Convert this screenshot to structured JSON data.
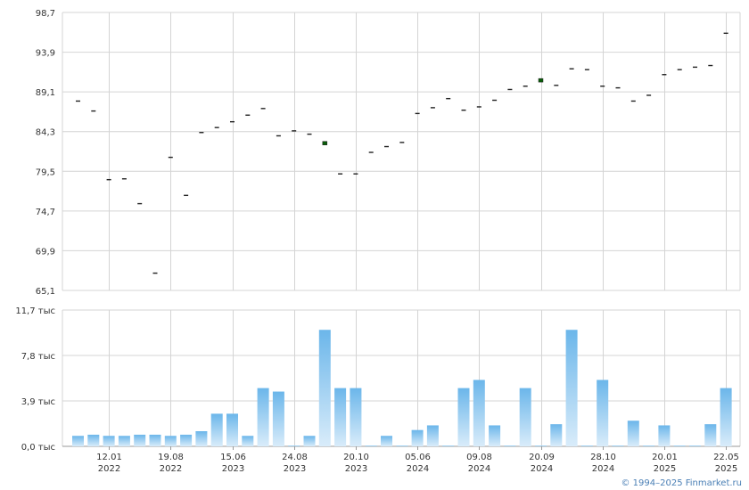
{
  "chart_data": [
    {
      "type": "scatter",
      "marker": "dash",
      "ylim": [
        65.1,
        98.7
      ],
      "y_ticks": [
        "98,7",
        "93,9",
        "89,1",
        "84,3",
        "79,5",
        "74,7",
        "69,9",
        "65,1"
      ],
      "values": [
        88.0,
        86.8,
        78.5,
        78.6,
        75.6,
        67.2,
        81.2,
        76.6,
        84.2,
        84.8,
        85.5,
        86.3,
        87.1,
        83.8,
        84.4,
        84.0,
        82.9,
        79.2,
        79.2,
        81.8,
        82.5,
        83.0,
        86.5,
        87.2,
        88.3,
        86.9,
        87.3,
        88.1,
        89.4,
        89.8,
        90.5,
        89.9,
        91.9,
        91.8,
        89.8,
        89.6,
        88.0,
        88.7,
        91.2,
        91.8,
        92.1,
        92.3,
        96.2
      ],
      "highlighted": [
        16,
        30
      ],
      "colors": {
        "marker": "#222222",
        "highlight": "#0a5c0a"
      }
    },
    {
      "type": "bar",
      "ylim": [
        0,
        11.7
      ],
      "y_ticks": [
        "11,7 тыс",
        "7,8 тыс",
        "3,9 тыс",
        "0,0 тыс"
      ],
      "values": [
        0.9,
        1.0,
        0.9,
        0.9,
        1.0,
        1.0,
        0.9,
        1.0,
        1.3,
        2.8,
        2.8,
        0.9,
        5.0,
        4.7,
        0.05,
        0.9,
        10.0,
        5.0,
        5.0,
        0.05,
        0.9,
        0.05,
        1.4,
        1.8,
        0.05,
        5.0,
        5.7,
        1.8,
        0.05,
        5.0,
        0.05,
        1.9,
        10.0,
        0.05,
        5.7,
        0.05,
        2.2,
        0.05,
        1.8,
        0.05,
        0.05,
        1.9,
        5.0
      ],
      "colors": {
        "bar_top": "#6bb6ea",
        "bar_bottom": "#d9ecfa"
      }
    }
  ],
  "x_axis": {
    "labels": [
      {
        "date": "12.01",
        "year": "2022",
        "index": 2
      },
      {
        "date": "19.08",
        "year": "2022",
        "index": 6
      },
      {
        "date": "15.06",
        "year": "2023",
        "index": 10
      },
      {
        "date": "24.08",
        "year": "2023",
        "index": 14
      },
      {
        "date": "20.10",
        "year": "2023",
        "index": 18
      },
      {
        "date": "05.06",
        "year": "2024",
        "index": 22
      },
      {
        "date": "09.08",
        "year": "2024",
        "index": 26
      },
      {
        "date": "20.09",
        "year": "2024",
        "index": 30
      },
      {
        "date": "28.10",
        "year": "2024",
        "index": 34
      },
      {
        "date": "20.01",
        "year": "2025",
        "index": 38
      },
      {
        "date": "22.05",
        "year": "2025",
        "index": 42
      }
    ]
  },
  "colors": {
    "grid": "#d4d4d4",
    "axis": "#999999",
    "credit": "#4a7fb5"
  },
  "footer": {
    "credit": "© 1994–2025 Finmarket.ru"
  }
}
